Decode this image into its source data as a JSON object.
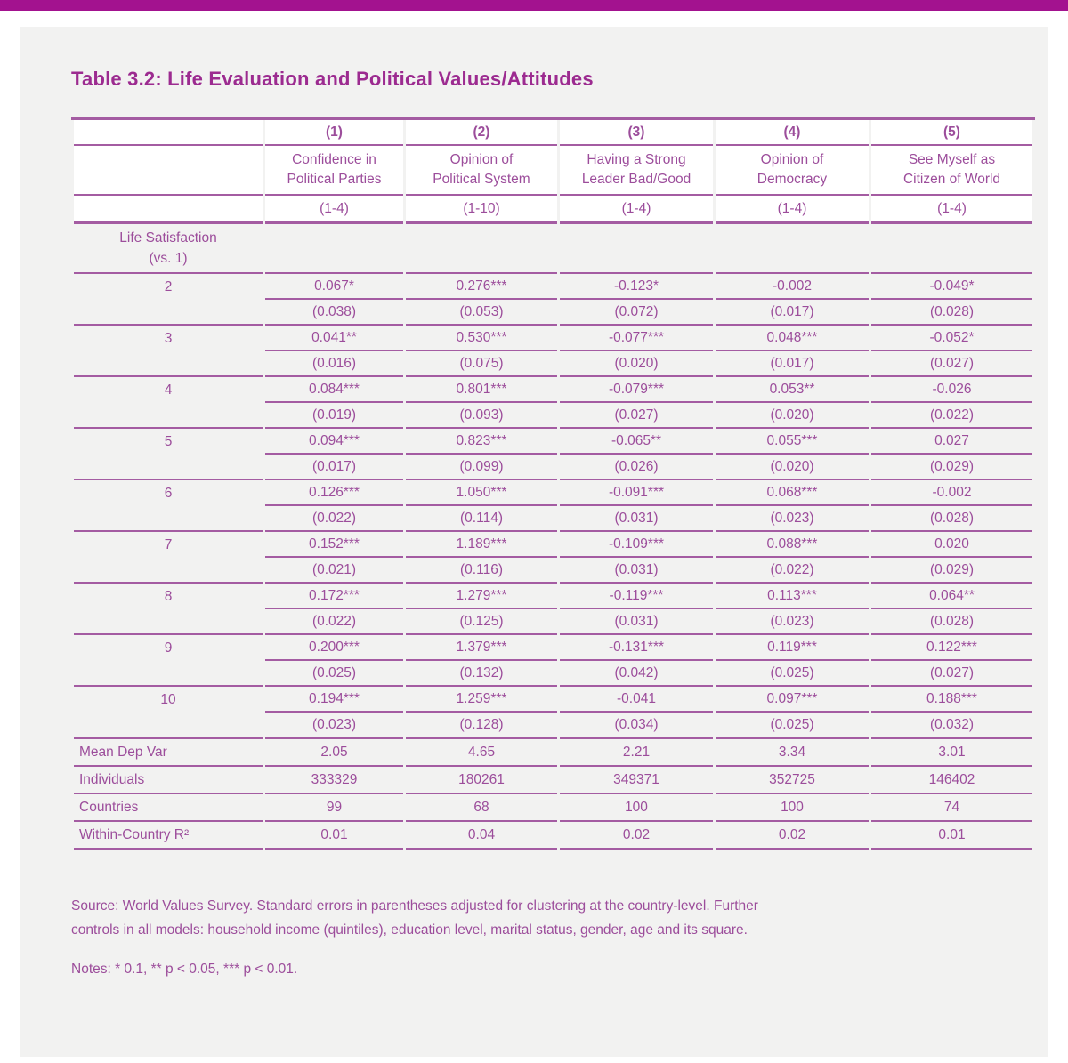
{
  "colors": {
    "accent": "#a3128f",
    "title_text": "#9c2b90",
    "table_text": "#9c4d9b",
    "rule": "#a45ca2",
    "panel_bg": "#f2f2f1",
    "header_bg": "#ffffff"
  },
  "title": "Table 3.2: Life Evaluation and Political Values/Attitudes",
  "table": {
    "columns": [
      {
        "num": "(1)",
        "name_line1": "Confidence in",
        "name_line2": "Political Parties",
        "scale": "(1-4)"
      },
      {
        "num": "(2)",
        "name_line1": "Opinion of",
        "name_line2": "Political System",
        "scale": "(1-10)"
      },
      {
        "num": "(3)",
        "name_line1": "Having a Strong",
        "name_line2": "Leader Bad/Good",
        "scale": "(1-4)"
      },
      {
        "num": "(4)",
        "name_line1": "Opinion of",
        "name_line2": "Democracy",
        "scale": "(1-4)"
      },
      {
        "num": "(5)",
        "name_line1": "See Myself as",
        "name_line2": "Citizen of World",
        "scale": "(1-4)"
      }
    ],
    "group_label_line1": "Life Satisfaction",
    "group_label_line2": "(vs. 1)",
    "rows": [
      {
        "label": "2",
        "coefs": [
          "0.067*",
          "0.276***",
          "-0.123*",
          "-0.002",
          "-0.049*"
        ],
        "ses": [
          "(0.038)",
          "(0.053)",
          "(0.072)",
          "(0.017)",
          "(0.028)"
        ]
      },
      {
        "label": "3",
        "coefs": [
          "0.041**",
          "0.530***",
          "-0.077***",
          "0.048***",
          "-0.052*"
        ],
        "ses": [
          "(0.016)",
          "(0.075)",
          "(0.020)",
          "(0.017)",
          "(0.027)"
        ]
      },
      {
        "label": "4",
        "coefs": [
          "0.084***",
          "0.801***",
          "-0.079***",
          "0.053**",
          "-0.026"
        ],
        "ses": [
          "(0.019)",
          "(0.093)",
          "(0.027)",
          "(0.020)",
          "(0.022)"
        ]
      },
      {
        "label": "5",
        "coefs": [
          "0.094***",
          "0.823***",
          "-0.065**",
          "0.055***",
          "0.027"
        ],
        "ses": [
          "(0.017)",
          "(0.099)",
          "(0.026)",
          "(0.020)",
          "(0.029)"
        ]
      },
      {
        "label": "6",
        "coefs": [
          "0.126***",
          "1.050***",
          "-0.091***",
          "0.068***",
          "-0.002"
        ],
        "ses": [
          "(0.022)",
          "(0.114)",
          "(0.031)",
          "(0.023)",
          "(0.028)"
        ]
      },
      {
        "label": "7",
        "coefs": [
          "0.152***",
          "1.189***",
          "-0.109***",
          "0.088***",
          "0.020"
        ],
        "ses": [
          "(0.021)",
          "(0.116)",
          "(0.031)",
          "(0.022)",
          "(0.029)"
        ]
      },
      {
        "label": "8",
        "coefs": [
          "0.172***",
          "1.279***",
          "-0.119***",
          "0.113***",
          "0.064**"
        ],
        "ses": [
          "(0.022)",
          "(0.125)",
          "(0.031)",
          "(0.023)",
          "(0.028)"
        ]
      },
      {
        "label": "9",
        "coefs": [
          "0.200***",
          "1.379***",
          "-0.131***",
          "0.119***",
          "0.122***"
        ],
        "ses": [
          "(0.025)",
          "(0.132)",
          "(0.042)",
          "(0.025)",
          "(0.027)"
        ]
      },
      {
        "label": "10",
        "coefs": [
          "0.194***",
          "1.259***",
          "-0.041",
          "0.097***",
          "0.188***"
        ],
        "ses": [
          "(0.023)",
          "(0.128)",
          "(0.034)",
          "(0.025)",
          "(0.032)"
        ]
      }
    ],
    "footer": [
      {
        "label": "Mean Dep Var",
        "values": [
          "2.05",
          "4.65",
          "2.21",
          "3.34",
          "3.01"
        ]
      },
      {
        "label": "Individuals",
        "values": [
          "333329",
          "180261",
          "349371",
          "352725",
          "146402"
        ]
      },
      {
        "label": "Countries",
        "values": [
          "99",
          "68",
          "100",
          "100",
          "74"
        ]
      },
      {
        "label": "Within-Country R²",
        "values": [
          "0.01",
          "0.04",
          "0.02",
          "0.02",
          "0.01"
        ]
      }
    ]
  },
  "notes": {
    "source_line1": "Source: World Values Survey. Standard errors in parentheses adjusted for clustering at the country-level. Further",
    "source_line2": "controls in all models: household income (quintiles), education level, marital status, gender, age and its square.",
    "significance": "Notes: * 0.1, ** p < 0.05, *** p < 0.01."
  }
}
